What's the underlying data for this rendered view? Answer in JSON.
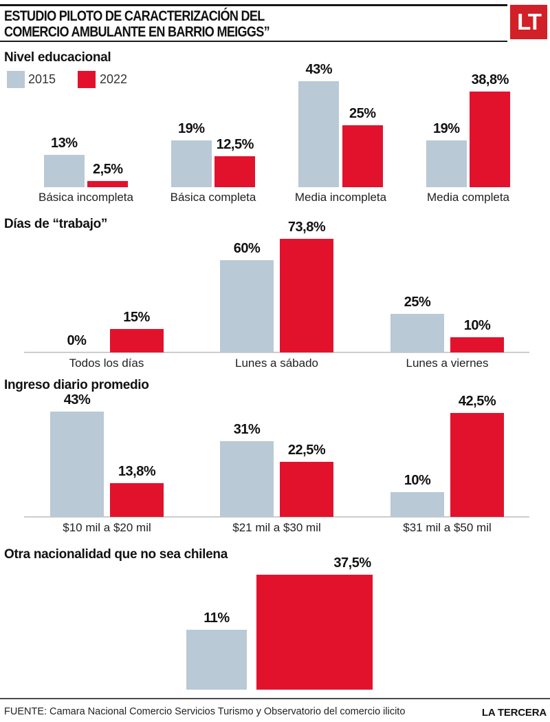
{
  "header": {
    "title_line1": "ESTUDIO PILOTO DE CARACTERIZACIÓN DEL",
    "title_line2": "COMERCIO AMBULANTE EN BARRIO MEIGGS”",
    "logo_text": "LT"
  },
  "colors": {
    "bar_2015": "#b9c9d5",
    "bar_2022": "#e2122d",
    "logo_red": "#d12027",
    "text": "#111111",
    "axis_line": "#cccccc"
  },
  "legend": {
    "position": "top-left",
    "items": [
      {
        "label": "2015",
        "color": "#b9c9d5"
      },
      {
        "label": "2022",
        "color": "#e2122d"
      }
    ]
  },
  "chart_data": [
    {
      "type": "bar",
      "title": "Nivel educacional",
      "unit": "%",
      "grid": false,
      "axis_line": false,
      "categories": [
        "Básica incompleta",
        "Básica completa",
        "Media incompleta",
        "Media completa"
      ],
      "series": [
        {
          "name": "2015",
          "values": [
            13,
            19,
            43,
            19
          ],
          "labels": [
            "13%",
            "19%",
            "43%",
            "19%"
          ]
        },
        {
          "name": "2022",
          "values": [
            2.5,
            12.5,
            25,
            38.8
          ],
          "labels": [
            "2,5%",
            "12,5%",
            "25%",
            "38,8%"
          ]
        }
      ]
    },
    {
      "type": "bar",
      "title": "Días de “trabajo”",
      "unit": "%",
      "grid": false,
      "axis_line": true,
      "categories": [
        "Todos los días",
        "Lunes a sábado",
        "Lunes a viernes"
      ],
      "series": [
        {
          "name": "2015",
          "values": [
            0,
            60,
            25
          ],
          "labels": [
            "0%",
            "60%",
            "25%"
          ]
        },
        {
          "name": "2022",
          "values": [
            15,
            73.8,
            10
          ],
          "labels": [
            "15%",
            "73,8%",
            "10%"
          ]
        }
      ]
    },
    {
      "type": "bar",
      "title": "Ingreso diario promedio",
      "unit": "%",
      "grid": false,
      "axis_line": true,
      "categories": [
        "$10 mil a $20 mil",
        "$21 mil a $30 mil",
        "$31 mil a $50 mil"
      ],
      "series": [
        {
          "name": "2015",
          "values": [
            43,
            31,
            10
          ],
          "labels": [
            "43%",
            "31%",
            "10%"
          ]
        },
        {
          "name": "2022",
          "values": [
            13.8,
            22.5,
            42.5
          ],
          "labels": [
            "13,8%",
            "22,5%",
            "42,5%"
          ]
        }
      ]
    },
    {
      "type": "bar",
      "title": "Otra nacionalidad que no sea chilena",
      "unit": "%",
      "grid": false,
      "axis_line": false,
      "categories": [
        ""
      ],
      "series": [
        {
          "name": "2015",
          "values": [
            11
          ],
          "labels": [
            "11%"
          ]
        },
        {
          "name": "2022",
          "values": [
            37.5
          ],
          "labels": [
            "37,5%"
          ]
        }
      ]
    }
  ],
  "footer": {
    "source": "FUENTE: Camara Nacional Comercio Servicios Turismo y Observatorio del comercio ilicito",
    "brand": "LA TERCERA"
  }
}
